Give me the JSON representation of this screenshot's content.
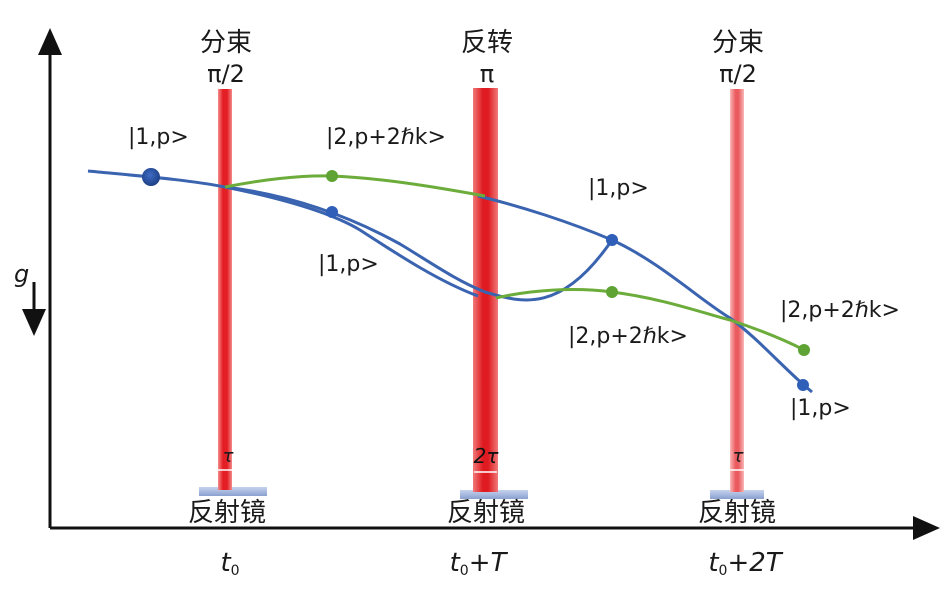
{
  "colors": {
    "axis": "#111111",
    "beam": "#e31e24",
    "path_state_1": "#3a63b0",
    "path_state_2": "#6cac3b",
    "dot_1": "#2f5fb8",
    "dot_2": "#5ea334",
    "mirror": "#9fb3dd"
  },
  "gravity": {
    "label": "g"
  },
  "pulses": [
    {
      "name": "分束",
      "phase": "π/2",
      "tau": "τ",
      "mirror": "反射镜",
      "time_base": "t",
      "time_sub": "0",
      "time_rest": ""
    },
    {
      "name": "反转",
      "phase": "π",
      "tau": "2τ",
      "mirror": "反射镜",
      "time_base": "t",
      "time_sub": "0",
      "time_rest": "+T"
    },
    {
      "name": "分束",
      "phase": "π/2",
      "tau": "τ",
      "mirror": "反射镜",
      "time_base": "t",
      "time_sub": "0",
      "time_rest": "+2T"
    }
  ],
  "states": {
    "s1_start": "|1,p>",
    "s2_upper": "|2,p+2ℏk>",
    "s1_lower": "|1,p>",
    "s1_mid": "|1,p>",
    "s2_mid": "|2,p+2ℏk>",
    "s2_end": "|2,p+2ℏk>",
    "s1_end": "|1,p>"
  }
}
